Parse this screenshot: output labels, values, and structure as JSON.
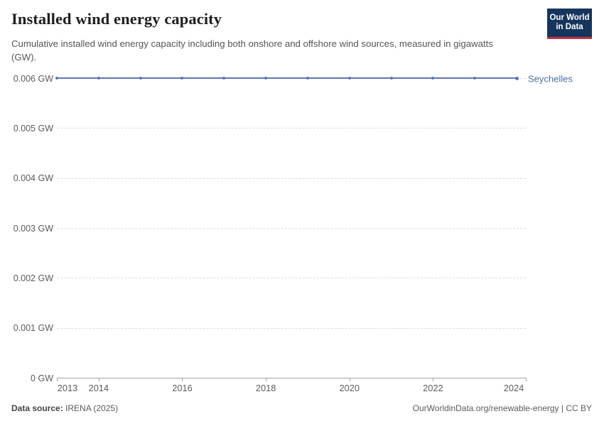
{
  "header": {
    "title": "Installed wind energy capacity",
    "subtitle": "Cumulative installed wind energy capacity including both onshore and offshore wind sources, measured in gigawatts (GW).",
    "logo": {
      "line1": "Our World",
      "line2": "in Data"
    }
  },
  "chart_data": {
    "type": "line",
    "title": "Installed wind energy capacity",
    "x": [
      2013,
      2014,
      2015,
      2016,
      2017,
      2018,
      2019,
      2020,
      2021,
      2022,
      2023,
      2024
    ],
    "series": [
      {
        "name": "Seychelles",
        "values": [
          0.006,
          0.006,
          0.006,
          0.006,
          0.006,
          0.006,
          0.006,
          0.006,
          0.006,
          0.006,
          0.006,
          0.006
        ]
      }
    ],
    "xlabel": "",
    "ylabel": "",
    "xlim": [
      2013,
      2024
    ],
    "ylim": [
      0,
      0.006
    ],
    "xticks": [
      2013,
      2014,
      2016,
      2018,
      2020,
      2022,
      2024
    ],
    "yticks": [
      {
        "value": 0,
        "label": "0 GW"
      },
      {
        "value": 0.001,
        "label": "0.001 GW"
      },
      {
        "value": 0.002,
        "label": "0.002 GW"
      },
      {
        "value": 0.003,
        "label": "0.003 GW"
      },
      {
        "value": 0.004,
        "label": "0.004 GW"
      },
      {
        "value": 0.005,
        "label": "0.005 GW"
      },
      {
        "value": 0.006,
        "label": "0.006 GW"
      }
    ],
    "grid": "horizontal-dashed",
    "legend_position": "end-of-line",
    "marker": "dot-every-year"
  },
  "footer": {
    "source_label": "Data source:",
    "source_value": " IRENA (2025)",
    "credit": "OurWorldinData.org/renewable-energy | CC BY"
  },
  "colors": {
    "series_line": "#5b79b0",
    "series_label": "#4d6fa5",
    "grid": "#dddddd",
    "axis": "#a5a5a5",
    "tick_text": "#5b5b5b",
    "logo_bg": "#16355c",
    "logo_accent": "#c1333e",
    "background": "#ffffff"
  }
}
